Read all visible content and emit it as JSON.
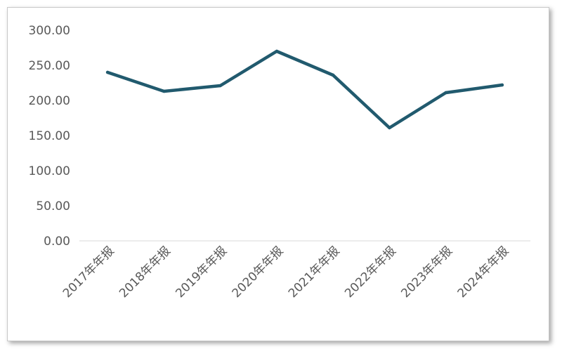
{
  "chart_data": {
    "type": "line",
    "categories": [
      "2017年年报",
      "2018年年报",
      "2019年年报",
      "2020年年报",
      "2021年年报",
      "2022年年报",
      "2023年年报",
      "2024年年报"
    ],
    "values": [
      240,
      213,
      221,
      270,
      236,
      161,
      211,
      222
    ],
    "ytick_labels": [
      "0.00",
      "50.00",
      "100.00",
      "150.00",
      "200.00",
      "250.00",
      "300.00"
    ],
    "ylim": [
      0,
      300
    ],
    "line_color": "#215a6e",
    "grid": false
  }
}
